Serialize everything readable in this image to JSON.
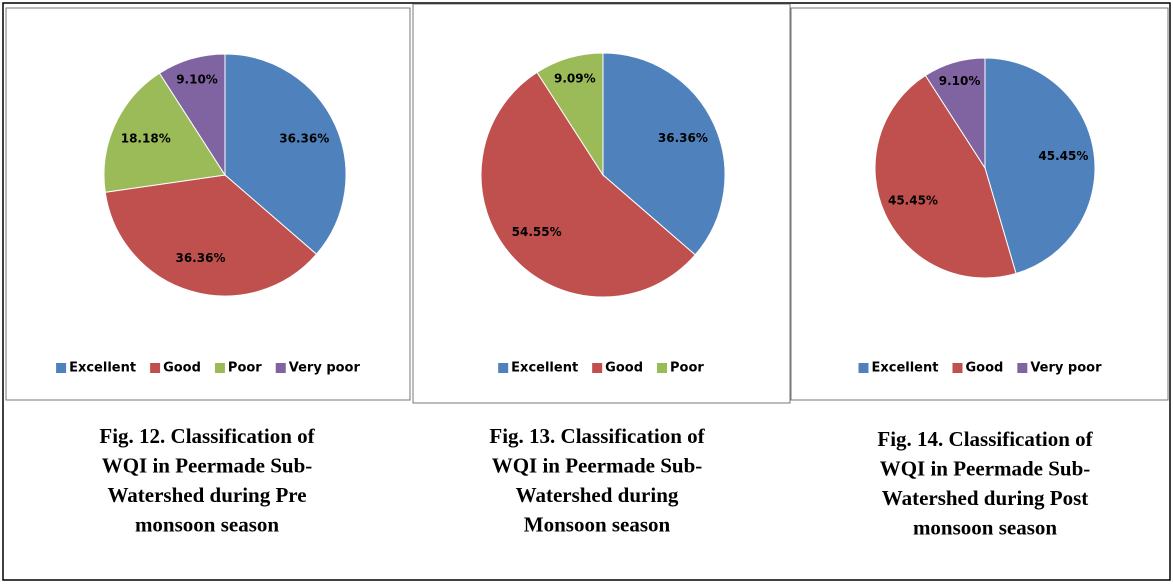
{
  "chart_data": [
    {
      "type": "pie",
      "categories": [
        "Excellent",
        "Good",
        "Poor",
        "Very poor"
      ],
      "values": [
        36.36,
        36.36,
        18.18,
        9.1
      ],
      "value_labels": [
        "36.36%",
        "36.36%",
        "18.18%",
        "9.10%"
      ],
      "colors": [
        "#4f81bd",
        "#c0504d",
        "#9bbb59",
        "#8064a2"
      ],
      "legend": "bottom",
      "caption_lines": [
        "Fig. 12. Classification of",
        "WQI in Peermade Sub-",
        "Watershed during Pre",
        "monsoon season"
      ]
    },
    {
      "type": "pie",
      "categories": [
        "Excellent",
        "Good",
        "Poor"
      ],
      "values": [
        36.36,
        54.55,
        9.09
      ],
      "value_labels": [
        "36.36%",
        "54.55%",
        "9.09%"
      ],
      "colors": [
        "#4f81bd",
        "#c0504d",
        "#9bbb59"
      ],
      "legend": "bottom",
      "caption_lines": [
        "Fig. 13. Classification of",
        "WQI in Peermade Sub-",
        "Watershed during",
        "Monsoon season"
      ]
    },
    {
      "type": "pie",
      "categories": [
        "Excellent",
        "Good",
        "Very poor"
      ],
      "values": [
        45.45,
        45.45,
        9.1
      ],
      "value_labels": [
        "45.45%",
        "45.45%",
        "9.10%"
      ],
      "colors": [
        "#4f81bd",
        "#c0504d",
        "#8064a2"
      ],
      "legend": "bottom",
      "caption_lines": [
        "Fig. 14. Classification of",
        "WQI in Peermade Sub-",
        "Watershed during Post",
        "monsoon season"
      ]
    }
  ]
}
